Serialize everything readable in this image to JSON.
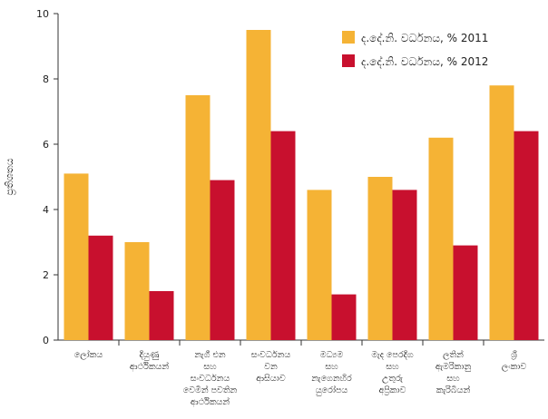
{
  "chart_data": {
    "type": "bar",
    "ylabel": "ප්‍රතිශතය",
    "ylim": [
      0,
      10
    ],
    "yticks": [
      "0",
      "2",
      "4",
      "6",
      "8",
      "10"
    ],
    "grid": false,
    "legend_position": "top-right",
    "categories": [
      [
        "ලෝකය"
      ],
      [
        "දියුණු",
        "ආර්ථිකයන්"
      ],
      [
        "නැගී එන",
        "සහ",
        "සංවර්ධනය",
        "වෙමින් පවතින",
        "ආර්ථිකයන්"
      ],
      [
        "සංවර්ධනය",
        "වන",
        "ආසියාව"
      ],
      [
        "මධ්‍යම",
        "සහ",
        "නැගෙනහිර",
        "යුරෝපය"
      ],
      [
        "මැද පෙරදිග",
        "සහ",
        "උතුරු",
        "අප්‍රිකාව"
      ],
      [
        "ලතින්",
        "ඇමරිකානු",
        "සහ",
        "කැරිබියන්"
      ],
      [
        "ශ්‍රී",
        "ලංකාව"
      ]
    ],
    "series": [
      {
        "name": "ද.දේ.නි. වර්ධනය, % 2011",
        "color": "#F5B335",
        "values": [
          5.1,
          3.0,
          7.5,
          9.5,
          4.6,
          5.0,
          6.2,
          7.8
        ]
      },
      {
        "name": "ද.දේ.නි. වර්ධනය, % 2012",
        "color": "#C8102E",
        "values": [
          3.2,
          1.5,
          4.9,
          6.4,
          1.4,
          4.6,
          2.9,
          6.4
        ]
      }
    ]
  }
}
